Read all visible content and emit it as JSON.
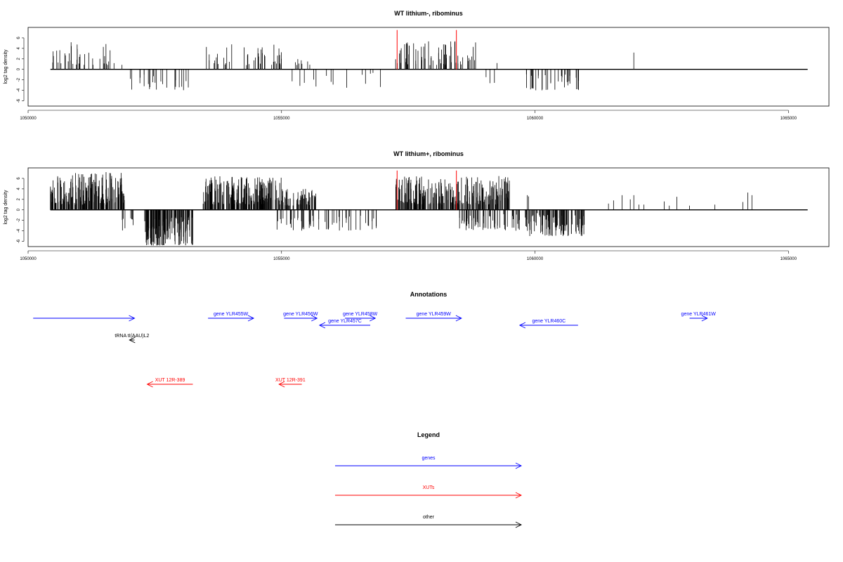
{
  "colors": {
    "genes": "#0000ff",
    "xuts": "#ff0000",
    "other": "#000000",
    "marker": "#ff0000",
    "bars": "#000000"
  },
  "chart_data": [
    {
      "type": "bar",
      "title": "WT lithium-, ribominus",
      "ylabel": "log2 tag density",
      "xlim": [
        1050000,
        1065800
      ],
      "ylim": [
        -7,
        8
      ],
      "x_ticks": [
        {
          "value": 1050000,
          "label": "1050000"
        },
        {
          "value": 1055000,
          "label": "1055000"
        },
        {
          "value": 1060000,
          "label": "1060000"
        },
        {
          "value": 1065000,
          "label": "1065000"
        }
      ],
      "y_ticks": [
        {
          "value": -6,
          "label": "-6"
        },
        {
          "value": -4,
          "label": "-4"
        },
        {
          "value": -2,
          "label": "-2"
        },
        {
          "value": 0,
          "label": "0"
        },
        {
          "value": 2,
          "label": "2"
        },
        {
          "value": 4,
          "label": "4"
        },
        {
          "value": 6,
          "label": "6"
        }
      ],
      "baseline_range": [
        1050440,
        1065380
      ],
      "markers": [
        {
          "x": 1057280,
          "y": 7.5
        },
        {
          "x": 1058450,
          "y": 7.5
        }
      ],
      "regions": [
        {
          "start": 1050440,
          "end": 1051900,
          "n": 38,
          "min": 0.8,
          "max": 5.2,
          "seed": 11
        },
        {
          "start": 1052000,
          "end": 1053200,
          "n": 24,
          "min": -4.0,
          "max": -0.8,
          "seed": 12
        },
        {
          "start": 1053500,
          "end": 1055000,
          "n": 42,
          "min": 0.8,
          "max": 5.0,
          "seed": 13
        },
        {
          "start": 1055200,
          "end": 1055700,
          "n": 8,
          "min": 0.8,
          "max": 3.5,
          "seed": 14
        },
        {
          "start": 1055200,
          "end": 1057000,
          "n": 14,
          "min": -3.5,
          "max": -0.6,
          "seed": 15
        },
        {
          "start": 1057250,
          "end": 1058900,
          "n": 70,
          "min": 0.8,
          "max": 5.5,
          "seed": 16
        },
        {
          "start": 1058950,
          "end": 1059300,
          "n": 3,
          "min": -3.0,
          "max": -1.0,
          "seed": 17
        },
        {
          "start": 1059800,
          "end": 1060900,
          "n": 36,
          "min": -4.0,
          "max": -0.8,
          "seed": 18
        }
      ],
      "extra_bars": [
        {
          "x": 1061950,
          "y": 3.2
        },
        {
          "x": 1059250,
          "y": 1.2
        },
        {
          "x": 1060600,
          "y": -1.0
        }
      ]
    },
    {
      "type": "bar",
      "title": "WT lithium+, ribominus",
      "ylabel": "log2 tag density",
      "xlim": [
        1050000,
        1065800
      ],
      "ylim": [
        -7,
        8
      ],
      "x_ticks": [
        {
          "value": 1050000,
          "label": "1050000"
        },
        {
          "value": 1055000,
          "label": "1055000"
        },
        {
          "value": 1060000,
          "label": "1060000"
        },
        {
          "value": 1065000,
          "label": "1065000"
        }
      ],
      "y_ticks": [
        {
          "value": -6,
          "label": "-6"
        },
        {
          "value": -4,
          "label": "-4"
        },
        {
          "value": -2,
          "label": "-2"
        },
        {
          "value": 0,
          "label": "0"
        },
        {
          "value": 2,
          "label": "2"
        },
        {
          "value": 4,
          "label": "4"
        },
        {
          "value": 6,
          "label": "6"
        }
      ],
      "baseline_range": [
        1050440,
        1065380
      ],
      "markers": [
        {
          "x": 1057280,
          "y": 7.5
        },
        {
          "x": 1058450,
          "y": 7.5
        }
      ],
      "regions": [
        {
          "start": 1050440,
          "end": 1051900,
          "n": 190,
          "min": 1.0,
          "max": 7.2,
          "seed": 21
        },
        {
          "start": 1051850,
          "end": 1052100,
          "n": 8,
          "min": -4.0,
          "max": -1.0,
          "seed": 22
        },
        {
          "start": 1052300,
          "end": 1053250,
          "n": 140,
          "min": -6.8,
          "max": -1.0,
          "seed": 23
        },
        {
          "start": 1053450,
          "end": 1055000,
          "n": 200,
          "min": 1.0,
          "max": 6.5,
          "seed": 24
        },
        {
          "start": 1055000,
          "end": 1055700,
          "n": 70,
          "min": 0.8,
          "max": 4.0,
          "seed": 25
        },
        {
          "start": 1054900,
          "end": 1056900,
          "n": 60,
          "min": -4.0,
          "max": -0.5,
          "seed": 26
        },
        {
          "start": 1057250,
          "end": 1059500,
          "n": 260,
          "min": 1.0,
          "max": 6.5,
          "seed": 27
        },
        {
          "start": 1058500,
          "end": 1059700,
          "n": 60,
          "min": -4.0,
          "max": -0.8,
          "seed": 28
        },
        {
          "start": 1059800,
          "end": 1061000,
          "n": 110,
          "min": -5.0,
          "max": -0.8,
          "seed": 29
        },
        {
          "start": 1059800,
          "end": 1060000,
          "n": 2,
          "min": 2.0,
          "max": 2.8,
          "seed": 30
        },
        {
          "start": 1060000,
          "end": 1061000,
          "n": 3,
          "min": -1.0,
          "max": -0.5,
          "seed": 31
        }
      ],
      "extra_bars": [
        {
          "x": 1061450,
          "y": 1.2
        },
        {
          "x": 1061550,
          "y": 1.8
        },
        {
          "x": 1061720,
          "y": 2.8
        },
        {
          "x": 1061880,
          "y": 2.0
        },
        {
          "x": 1061950,
          "y": 2.8
        },
        {
          "x": 1062050,
          "y": 1.0
        },
        {
          "x": 1062150,
          "y": 1.0
        },
        {
          "x": 1062550,
          "y": 1.6
        },
        {
          "x": 1062650,
          "y": 0.8
        },
        {
          "x": 1062800,
          "y": 2.5
        },
        {
          "x": 1063050,
          "y": 0.8
        },
        {
          "x": 1063550,
          "y": 1.0
        },
        {
          "x": 1064100,
          "y": 1.5
        },
        {
          "x": 1064200,
          "y": 3.3
        },
        {
          "x": 1064280,
          "y": 2.8
        }
      ]
    }
  ],
  "annotations": {
    "title": "Annotations",
    "xlim": [
      1050000,
      1065800
    ],
    "features": [
      {
        "label": "",
        "start": 1050100,
        "end": 1052100,
        "dir": 1,
        "kind": "genes",
        "row": 0
      },
      {
        "label": "gene YLR455W",
        "start": 1053550,
        "end": 1054450,
        "dir": 1,
        "kind": "genes",
        "row": 0
      },
      {
        "label": "gene YLR456W",
        "start": 1055050,
        "end": 1055700,
        "dir": 1,
        "kind": "genes",
        "row": 0
      },
      {
        "label": "gene YLR458W",
        "start": 1056250,
        "end": 1056850,
        "dir": 1,
        "kind": "genes",
        "row": 0
      },
      {
        "label": "gene YLR457C",
        "start": 1055750,
        "end": 1056750,
        "dir": -1,
        "kind": "genes",
        "row": 1
      },
      {
        "label": "gene YLR459W",
        "start": 1057450,
        "end": 1058550,
        "dir": 1,
        "kind": "genes",
        "row": 0
      },
      {
        "label": "gene YLR460C",
        "start": 1059700,
        "end": 1060850,
        "dir": -1,
        "kind": "genes",
        "row": 1
      },
      {
        "label": "gene YLR461W",
        "start": 1063050,
        "end": 1063400,
        "dir": 1,
        "kind": "genes",
        "row": 0
      },
      {
        "label": "tRNA tI(AAU)L2",
        "start": 1052000,
        "end": 1052100,
        "dir": -1,
        "kind": "other",
        "row": 2
      },
      {
        "label": "XUT 12R-389",
        "start": 1052350,
        "end": 1053250,
        "dir": -1,
        "kind": "xuts",
        "row": 3
      },
      {
        "label": "XUT 12R-391",
        "start": 1054950,
        "end": 1055400,
        "dir": -1,
        "kind": "xuts",
        "row": 3
      }
    ]
  },
  "legend": {
    "title": "Legend",
    "items": [
      {
        "label": "genes",
        "kind": "genes"
      },
      {
        "label": "XUTs",
        "kind": "xuts"
      },
      {
        "label": "other",
        "kind": "other"
      }
    ]
  }
}
